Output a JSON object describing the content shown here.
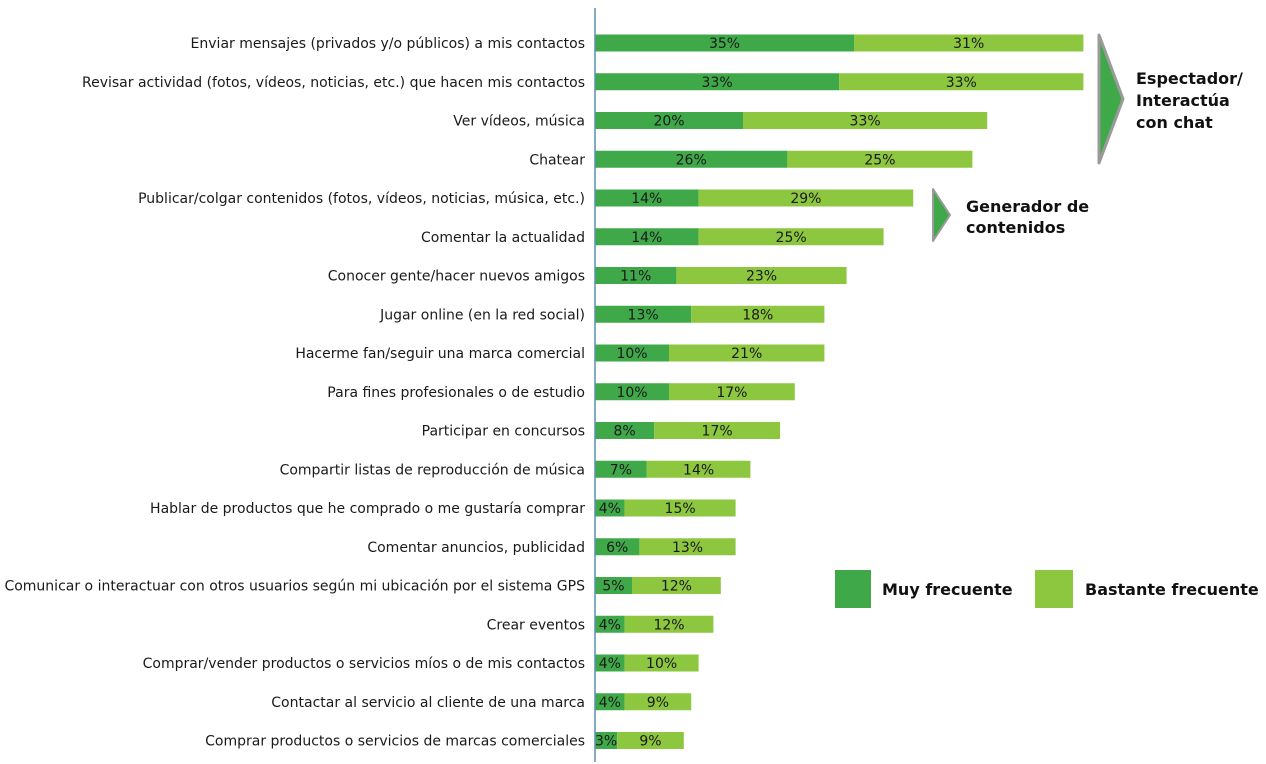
{
  "chart_data": {
    "type": "bar",
    "orientation": "horizontal",
    "stacked": true,
    "categories": [
      "Enviar mensajes (privados y/o públicos) a mis contactos",
      "Revisar actividad (fotos, vídeos, noticias, etc.) que hacen mis contactos",
      "Ver vídeos, música",
      "Chatear",
      "Publicar/colgar contenidos (fotos, vídeos, noticias, música, etc.)",
      "Comentar la actualidad",
      "Conocer gente/hacer nuevos amigos",
      "Jugar online (en la red social)",
      "Hacerme fan/seguir una marca comercial",
      "Para fines profesionales o de estudio",
      "Participar en concursos",
      "Compartir listas de reproducción de música",
      "Hablar de productos que he comprado o me gustaría comprar",
      "Comentar anuncios, publicidad",
      "Comunicar o interactuar con otros usuarios según  mi ubicación por el sistema GPS",
      "Crear eventos",
      "Comprar/vender productos o servicios míos o de mis contactos",
      "Contactar al servicio al cliente de una marca",
      "Comprar productos o servicios de marcas comerciales"
    ],
    "series": [
      {
        "name": "Muy frecuente",
        "color": "#3fa94a",
        "values": [
          35,
          33,
          20,
          26,
          14,
          14,
          11,
          13,
          10,
          10,
          8,
          7,
          4,
          6,
          5,
          4,
          4,
          4,
          3
        ]
      },
      {
        "name": "Bastante frecuente",
        "color": "#8dc63f",
        "values": [
          31,
          33,
          33,
          25,
          29,
          25,
          23,
          18,
          21,
          17,
          17,
          14,
          15,
          13,
          12,
          12,
          10,
          9,
          9
        ]
      }
    ],
    "value_suffix": "%",
    "legend_position": "right",
    "annotations": [
      {
        "text": [
          "Espectador/",
          "Interactúa",
          "con chat"
        ],
        "group_rows": [
          0,
          3
        ]
      },
      {
        "text": [
          "Generador de",
          "contenidos"
        ],
        "group_rows": [
          4,
          5
        ]
      }
    ],
    "axis_line_color": "#5b8fb0",
    "annotation_arrow_color": "#3fa94a"
  }
}
